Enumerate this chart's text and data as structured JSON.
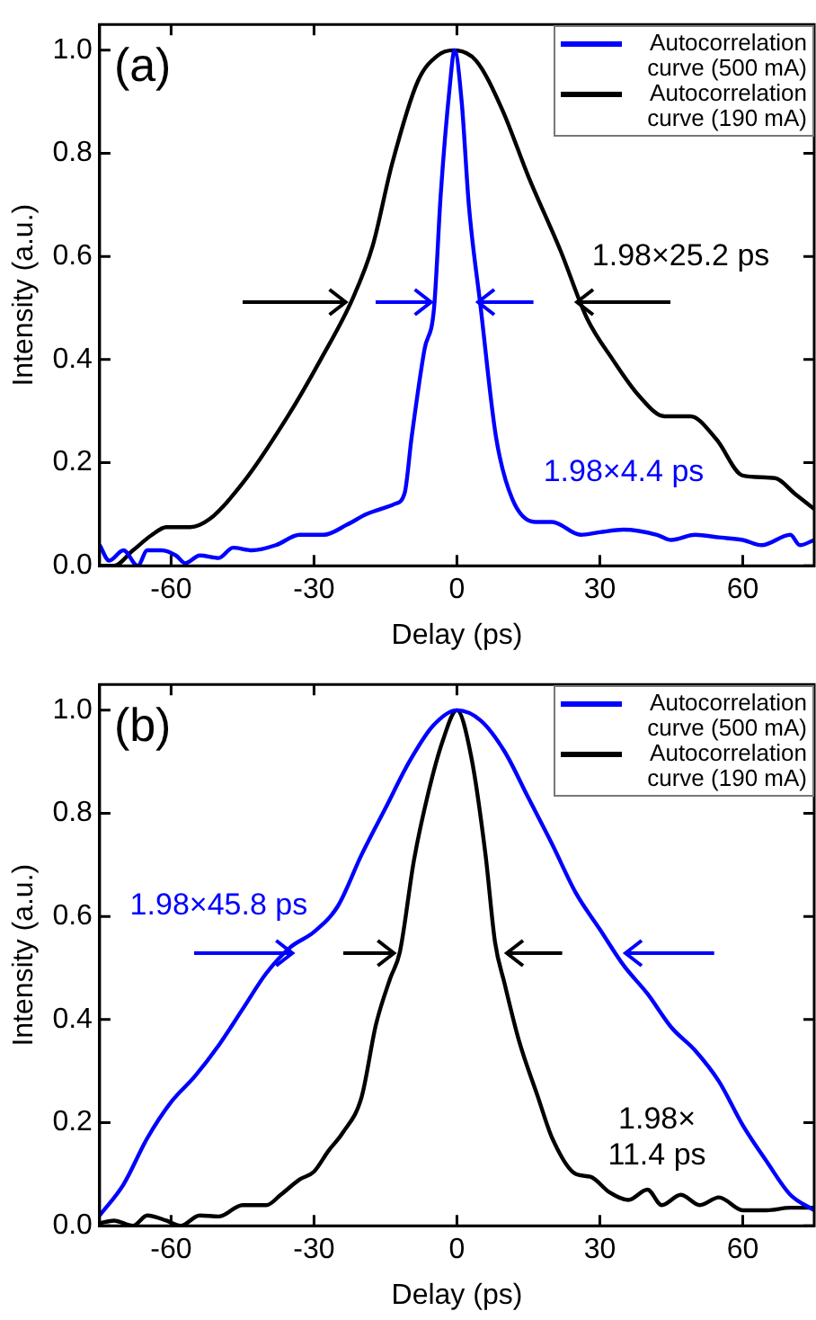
{
  "chart_data": [
    {
      "type": "line",
      "xlabel": "Delay (ps)",
      "ylabel": "Intensity (a.u.)",
      "xlim": [
        -75,
        75
      ],
      "ylim": [
        0,
        1.05
      ],
      "xticks": [
        -60,
        -30,
        0,
        30,
        60
      ],
      "yticks": [
        {
          "value": 0,
          "label": "0.0"
        },
        {
          "value": 0.2,
          "label": "0.2"
        },
        {
          "value": 0.4,
          "label": "0.4"
        },
        {
          "value": 0.6,
          "label": "0.6"
        },
        {
          "value": 0.8,
          "label": "0.8"
        },
        {
          "value": 1,
          "label": "1.0"
        }
      ],
      "legend": "top right",
      "annotations": [
        "(a)",
        "1.98×25.2 ps",
        "1.98×4.4 ps"
      ],
      "series": [
        {
          "name": "Autocorrelation curve (500 mA)",
          "color": "#0000ff",
          "x": [
            -75,
            -73,
            -70,
            -67,
            -65,
            -62,
            -59,
            -57,
            -54,
            -50,
            -47,
            -43,
            -38,
            -33,
            -28,
            -23,
            -19,
            -16,
            -13,
            -11,
            -9.5,
            -6.8,
            -4.8,
            -3.4,
            -1.5,
            -0.5,
            1,
            2.5,
            5,
            8.2,
            11.6,
            16.4,
            20,
            26,
            30,
            35,
            42,
            45,
            50,
            55,
            60,
            64,
            70,
            72,
            75
          ],
          "values": [
            0.04,
            0.01,
            0.03,
            0.0,
            0.03,
            0.03,
            0.02,
            0.005,
            0.02,
            0.015,
            0.035,
            0.03,
            0.04,
            0.06,
            0.06,
            0.08,
            0.1,
            0.11,
            0.12,
            0.14,
            0.25,
            0.42,
            0.5,
            0.72,
            0.93,
            1.0,
            0.9,
            0.7,
            0.5,
            0.25,
            0.13,
            0.085,
            0.085,
            0.06,
            0.065,
            0.07,
            0.06,
            0.05,
            0.06,
            0.055,
            0.05,
            0.04,
            0.06,
            0.04,
            0.05
          ]
        },
        {
          "name": "Autocorrelation curve (190 mA)",
          "color": "#000000",
          "x": [
            -75,
            -72,
            -68,
            -64,
            -61,
            -56,
            -52,
            -45,
            -35.5,
            -28.6,
            -21.8,
            -17.7,
            -13.6,
            -8.2,
            -4,
            -0.7,
            4,
            9.5,
            15,
            21.8,
            27.3,
            32.7,
            38.2,
            43.6,
            49,
            54.5,
            60,
            66.8,
            70.9,
            75
          ],
          "values": [
            0.0,
            0.0,
            0.03,
            0.06,
            0.075,
            0.075,
            0.09,
            0.16,
            0.29,
            0.4,
            0.52,
            0.62,
            0.78,
            0.94,
            0.99,
            1.0,
            0.98,
            0.885,
            0.755,
            0.61,
            0.48,
            0.4,
            0.33,
            0.29,
            0.29,
            0.245,
            0.175,
            0.17,
            0.14,
            0.11
          ]
        }
      ]
    },
    {
      "type": "line",
      "xlabel": "Delay (ps)",
      "ylabel": "Intensity (a.u.)",
      "xlim": [
        -75,
        75
      ],
      "ylim": [
        0,
        1.05
      ],
      "xticks": [
        -60,
        -30,
        0,
        30,
        60
      ],
      "yticks": [
        {
          "value": 0,
          "label": "0.0"
        },
        {
          "value": 0.2,
          "label": "0.2"
        },
        {
          "value": 0.4,
          "label": "0.4"
        },
        {
          "value": 0.6,
          "label": "0.6"
        },
        {
          "value": 0.8,
          "label": "0.8"
        },
        {
          "value": 1,
          "label": "1.0"
        }
      ],
      "legend": "top right",
      "annotations": [
        "(b)",
        "1.98×45.8 ps",
        "1.98×\n11.4 ps"
      ],
      "series": [
        {
          "name": "Autocorrelation curve (500 mA)",
          "color": "#0000ff",
          "x": [
            -75,
            -70,
            -65,
            -60,
            -55,
            -50,
            -45,
            -40,
            -35,
            -30,
            -25,
            -20,
            -15,
            -10,
            -5,
            0,
            5,
            10,
            15,
            20,
            25,
            30,
            35,
            40,
            45,
            50,
            55,
            60,
            65,
            70,
            75
          ],
          "values": [
            0.02,
            0.08,
            0.17,
            0.24,
            0.29,
            0.35,
            0.42,
            0.49,
            0.54,
            0.57,
            0.62,
            0.72,
            0.81,
            0.9,
            0.97,
            1.0,
            0.98,
            0.92,
            0.83,
            0.74,
            0.645,
            0.575,
            0.505,
            0.45,
            0.385,
            0.34,
            0.28,
            0.195,
            0.125,
            0.06,
            0.03
          ]
        },
        {
          "name": "Autocorrelation curve (190 mA)",
          "color": "#000000",
          "x": [
            -75,
            -72,
            -68,
            -65,
            -61,
            -58,
            -54,
            -50,
            -45,
            -40,
            -37,
            -33,
            -30,
            -27,
            -24,
            -20,
            -17,
            -14,
            -12,
            -9,
            -6,
            -3,
            0,
            3,
            6,
            8,
            10,
            13,
            17,
            20,
            25,
            28,
            32,
            36,
            40,
            43,
            47,
            51,
            55,
            60,
            65,
            70,
            75
          ],
          "values": [
            0.005,
            0.01,
            0.0,
            0.02,
            0.01,
            0.0,
            0.02,
            0.018,
            0.04,
            0.04,
            0.06,
            0.09,
            0.105,
            0.145,
            0.18,
            0.25,
            0.39,
            0.48,
            0.53,
            0.71,
            0.84,
            0.94,
            1.0,
            0.91,
            0.72,
            0.55,
            0.47,
            0.36,
            0.25,
            0.17,
            0.1,
            0.095,
            0.065,
            0.05,
            0.07,
            0.04,
            0.06,
            0.04,
            0.055,
            0.03,
            0.03,
            0.035,
            0.035
          ]
        }
      ]
    }
  ]
}
